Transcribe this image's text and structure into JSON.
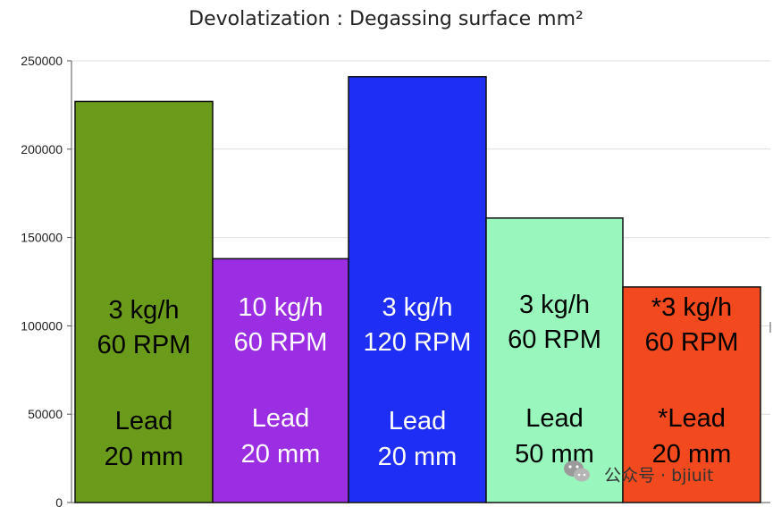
{
  "chart_data": {
    "type": "bar",
    "title": "Devolatization : Degassing surface mm²",
    "xlabel": "",
    "ylabel": "",
    "ylim": [
      0,
      250000
    ],
    "yticks": [
      0,
      50000,
      100000,
      150000,
      200000,
      250000
    ],
    "ytick_labels": [
      "0",
      "50000",
      "100000",
      "150000",
      "200000",
      "250000"
    ],
    "grid": true,
    "categories": [
      "3 kg/h 60 RPM Lead 20 mm",
      "10 kg/h 60 RPM Lead 20 mm",
      "3 kg/h 120 RPM Lead 20 mm",
      "3 kg/h 60 RPM Lead 50 mm",
      "*3 kg/h 60 RPM *Lead 20 mm"
    ],
    "values": [
      227000,
      138000,
      241000,
      161000,
      122000
    ],
    "bars": [
      {
        "value": 227000,
        "color": "#6b9b1a",
        "text_color": "#000000",
        "line1": "3 kg/h",
        "line2": "60 RPM",
        "line3": "Lead",
        "line4": "20 mm"
      },
      {
        "value": 138000,
        "color": "#9b2de3",
        "text_color": "#ffffff",
        "line1": "10 kg/h",
        "line2": "60 RPM",
        "line3": "Lead",
        "line4": "20 mm"
      },
      {
        "value": 241000,
        "color": "#1f2ef5",
        "text_color": "#ffffff",
        "line1": "3 kg/h",
        "line2": "120 RPM",
        "line3": "Lead",
        "line4": "20 mm"
      },
      {
        "value": 161000,
        "color": "#99f7bd",
        "text_color": "#000000",
        "line1": "3 kg/h",
        "line2": "60 RPM",
        "line3": "Lead",
        "line4": "50 mm"
      },
      {
        "value": 122000,
        "color": "#f24a1e",
        "text_color": "#000000",
        "line1": "*3 kg/h",
        "line2": "60 RPM",
        "line3": "*Lead",
        "line4": "20 mm"
      }
    ]
  },
  "watermark": {
    "text": "公众号 · bjiuit",
    "icon": "wechat-icon"
  }
}
